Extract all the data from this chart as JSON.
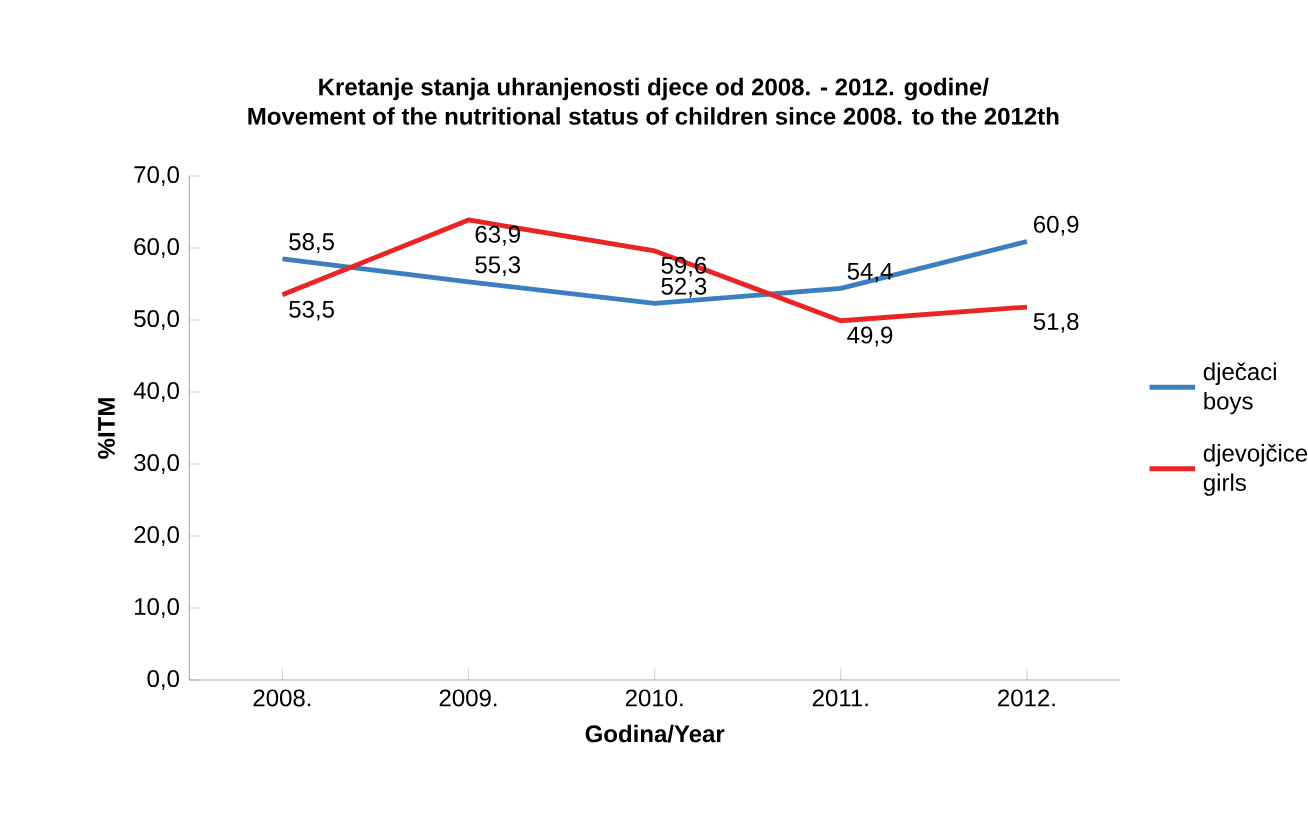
{
  "chart_data": {
    "type": "line",
    "title": "Kretanje stanja uhranjenosti djece od 2008. - 2012. godine/\nMovement of the nutritional status of children since 2008. to the 2012th",
    "xlabel": "Godina/Year",
    "ylabel": "%ITM",
    "categories": [
      "2008.",
      "2009.",
      "2010.",
      "2011.",
      "2012."
    ],
    "series": [
      {
        "name": "dječaci boys",
        "color": "#3c7fc0",
        "values": [
          58.5,
          55.3,
          52.3,
          54.4,
          60.9
        ],
        "value_labels": [
          "58,5",
          "55,3",
          "52,3",
          "54,4",
          "60,9"
        ]
      },
      {
        "name": "djevojčice girls",
        "color": "#e82424",
        "values": [
          53.5,
          63.9,
          59.6,
          49.9,
          51.8
        ],
        "value_labels": [
          "53,5",
          "63,9",
          "59,6",
          "49,9",
          "51,8"
        ]
      }
    ],
    "ylim": [
      0,
      70
    ],
    "yticks": [
      {
        "value": 0,
        "label": "0,0"
      },
      {
        "value": 10,
        "label": "10,0"
      },
      {
        "value": 20,
        "label": "20,0"
      },
      {
        "value": 30,
        "label": "30,0"
      },
      {
        "value": 40,
        "label": "40,0"
      },
      {
        "value": 50,
        "label": "50,0"
      },
      {
        "value": 60,
        "label": "60,0"
      },
      {
        "value": 70,
        "label": "70,0"
      }
    ],
    "legend": "right",
    "marker": "none",
    "line_style": "solid",
    "grid": false
  }
}
